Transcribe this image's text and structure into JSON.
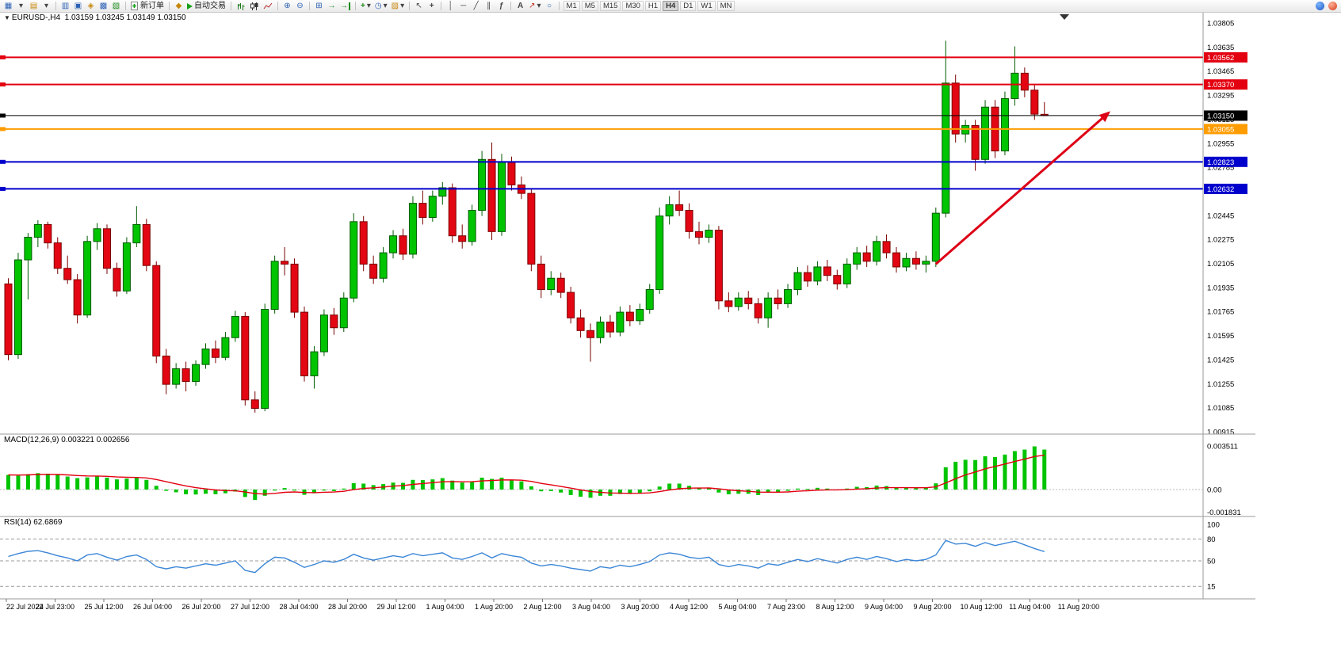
{
  "toolbar": {
    "new_order_label": "新订单",
    "auto_trading_label": "自动交易",
    "timeframes": [
      "M1",
      "M5",
      "M15",
      "M30",
      "H1",
      "H4",
      "D1",
      "W1",
      "MN"
    ],
    "active_timeframe": "H4",
    "icons": {
      "new_chart": "▦",
      "dropdown": "▾",
      "profiles": "▤",
      "market_watch": "▥",
      "data_window": "▣",
      "navigator": "◈",
      "terminal": "▩",
      "tester": "▧",
      "metaeditor": "◆",
      "zoom_in": "⊕",
      "zoom_out": "⊖",
      "tile": "⊞",
      "auto_scroll": "→",
      "chart_shift": "→",
      "indicators": "+",
      "periods": "◷",
      "templates": "▨",
      "cursor": "↖",
      "crosshair": "+",
      "vline": "│",
      "hline": "─",
      "trendline": "╱",
      "channel": "∥",
      "fibonacci": "ƒ",
      "text_tool": "A",
      "arrows_tool": "↗",
      "shapes_tool": "○"
    }
  },
  "chart_data": {
    "type": "candlestick+indicators",
    "main": {
      "symbol": "EURUSD-,H4",
      "ohlc_text": "1.03159 1.03245 1.03149 1.03150",
      "price_max": 1.03805,
      "price_step": 0.0017,
      "price_ticks": 18,
      "hlines": [
        {
          "price": 1.03562,
          "label": "1.03562",
          "color": "#e30010",
          "width": 2
        },
        {
          "price": 1.0337,
          "label": "1.03370",
          "color": "#e30010",
          "width": 2
        },
        {
          "price": 1.0315,
          "label": "1.03150",
          "color": "#000000",
          "width": 1
        },
        {
          "price": 1.03055,
          "label": "1.03055",
          "color": "#ff9c00",
          "width": 2
        },
        {
          "price": 1.02823,
          "label": "1.02823",
          "color": "#0000cc",
          "width": 2
        },
        {
          "price": 1.02632,
          "label": "1.02632",
          "color": "#0000cc",
          "width": 2
        }
      ],
      "arrow": {
        "from_bar": 94,
        "from_price": 1.021,
        "to_bar": 111.5,
        "to_price": 1.0317,
        "color": "#dd0016"
      }
    },
    "style": {
      "up": {
        "fill": "#00c400",
        "stroke": "#005a00"
      },
      "down": {
        "fill": "#e30613",
        "stroke": "#7a0000"
      }
    },
    "candles": [
      [
        1.0196,
        1.02,
        1.0142,
        1.0146
      ],
      [
        1.0146,
        1.0218,
        1.0143,
        1.0213
      ],
      [
        1.0213,
        1.0232,
        1.0185,
        1.0229
      ],
      [
        1.0229,
        1.0241,
        1.0222,
        1.0238
      ],
      [
        1.0238,
        1.024,
        1.0221,
        1.0225
      ],
      [
        1.0225,
        1.0229,
        1.0203,
        1.0207
      ],
      [
        1.0207,
        1.0216,
        1.0196,
        1.0199
      ],
      [
        1.0199,
        1.0203,
        1.0168,
        1.0174
      ],
      [
        1.0174,
        1.023,
        1.0172,
        1.0226
      ],
      [
        1.0226,
        1.0239,
        1.022,
        1.0235
      ],
      [
        1.0235,
        1.0238,
        1.0203,
        1.0207
      ],
      [
        1.0207,
        1.0211,
        1.0187,
        1.0191
      ],
      [
        1.0191,
        1.0229,
        1.0189,
        1.0225
      ],
      [
        1.0225,
        1.0251,
        1.0222,
        1.0238
      ],
      [
        1.0238,
        1.0242,
        1.0205,
        1.0209
      ],
      [
        1.0209,
        1.0212,
        1.014,
        1.0145
      ],
      [
        1.0145,
        1.015,
        1.0118,
        1.0125
      ],
      [
        1.0125,
        1.014,
        1.0122,
        1.0136
      ],
      [
        1.0136,
        1.0141,
        1.012,
        1.0127
      ],
      [
        1.0127,
        1.0142,
        1.0124,
        1.0139
      ],
      [
        1.0139,
        1.0154,
        1.0136,
        1.015
      ],
      [
        1.015,
        1.0156,
        1.014,
        1.0144
      ],
      [
        1.0144,
        1.0162,
        1.0142,
        1.0158
      ],
      [
        1.0158,
        1.0177,
        1.0155,
        1.0173
      ],
      [
        1.0173,
        1.0176,
        1.011,
        1.0114
      ],
      [
        1.0114,
        1.012,
        1.0105,
        1.0108
      ],
      [
        1.0108,
        1.0182,
        1.0106,
        1.0178
      ],
      [
        1.0178,
        1.0216,
        1.0175,
        1.0212
      ],
      [
        1.0212,
        1.0222,
        1.0202,
        1.021
      ],
      [
        1.021,
        1.0214,
        1.0172,
        1.0176
      ],
      [
        1.0176,
        1.018,
        1.0127,
        1.0131
      ],
      [
        1.0131,
        1.0152,
        1.0122,
        1.0148
      ],
      [
        1.0148,
        1.0178,
        1.0145,
        1.0174
      ],
      [
        1.0174,
        1.0179,
        1.016,
        1.0165
      ],
      [
        1.0165,
        1.019,
        1.0162,
        1.0186
      ],
      [
        1.0186,
        1.0246,
        1.0183,
        1.024
      ],
      [
        1.024,
        1.0244,
        1.0205,
        1.021
      ],
      [
        1.021,
        1.0216,
        1.0196,
        1.02
      ],
      [
        1.02,
        1.0222,
        1.0197,
        1.0218
      ],
      [
        1.0218,
        1.0234,
        1.0214,
        1.023
      ],
      [
        1.023,
        1.0235,
        1.0213,
        1.0217
      ],
      [
        1.0217,
        1.0258,
        1.0214,
        1.0253
      ],
      [
        1.0253,
        1.0262,
        1.0238,
        1.0243
      ],
      [
        1.0243,
        1.0262,
        1.024,
        1.0258
      ],
      [
        1.0258,
        1.0268,
        1.0252,
        1.0264
      ],
      [
        1.0264,
        1.0267,
        1.0225,
        1.023
      ],
      [
        1.023,
        1.0238,
        1.0221,
        1.0226
      ],
      [
        1.0226,
        1.0252,
        1.0223,
        1.0248
      ],
      [
        1.0248,
        1.029,
        1.0244,
        1.0284
      ],
      [
        1.0284,
        1.0296,
        1.0227,
        1.0233
      ],
      [
        1.0233,
        1.0288,
        1.023,
        1.0282
      ],
      [
        1.0282,
        1.0286,
        1.0262,
        1.0266
      ],
      [
        1.0266,
        1.0272,
        1.0256,
        1.026
      ],
      [
        1.026,
        1.0263,
        1.0205,
        1.021
      ],
      [
        1.021,
        1.0216,
        1.0186,
        1.0192
      ],
      [
        1.0192,
        1.0205,
        1.0188,
        1.02
      ],
      [
        1.02,
        1.0204,
        1.0186,
        1.019
      ],
      [
        1.019,
        1.0194,
        1.0168,
        1.0172
      ],
      [
        1.0172,
        1.0178,
        1.0158,
        1.0163
      ],
      [
        1.0163,
        1.0168,
        1.0141,
        1.0158
      ],
      [
        1.0158,
        1.0173,
        1.0154,
        1.0169
      ],
      [
        1.0169,
        1.0174,
        1.0158,
        1.0162
      ],
      [
        1.0162,
        1.018,
        1.0159,
        1.0176
      ],
      [
        1.0176,
        1.0181,
        1.0166,
        1.017
      ],
      [
        1.017,
        1.0182,
        1.0167,
        1.0178
      ],
      [
        1.0178,
        1.0196,
        1.0175,
        1.0192
      ],
      [
        1.0192,
        1.025,
        1.0189,
        1.0244
      ],
      [
        1.0244,
        1.0258,
        1.0238,
        1.0252
      ],
      [
        1.0252,
        1.0262,
        1.0244,
        1.0248
      ],
      [
        1.0248,
        1.0253,
        1.0228,
        1.0233
      ],
      [
        1.0233,
        1.024,
        1.0224,
        1.0229
      ],
      [
        1.0229,
        1.0238,
        1.0225,
        1.0234
      ],
      [
        1.0234,
        1.0237,
        1.0178,
        1.0184
      ],
      [
        1.0184,
        1.019,
        1.0176,
        1.018
      ],
      [
        1.018,
        1.019,
        1.0177,
        1.0186
      ],
      [
        1.0186,
        1.0191,
        1.0178,
        1.0182
      ],
      [
        1.0182,
        1.0186,
        1.0168,
        1.0172
      ],
      [
        1.0172,
        1.019,
        1.0165,
        1.0186
      ],
      [
        1.0186,
        1.0192,
        1.0178,
        1.0182
      ],
      [
        1.0182,
        1.0196,
        1.0179,
        1.0192
      ],
      [
        1.0192,
        1.0208,
        1.0188,
        1.0204
      ],
      [
        1.0204,
        1.0209,
        1.0194,
        1.0198
      ],
      [
        1.0198,
        1.0212,
        1.0195,
        1.0208
      ],
      [
        1.0208,
        1.0213,
        1.0198,
        1.0202
      ],
      [
        1.0202,
        1.0206,
        1.0192,
        1.0196
      ],
      [
        1.0196,
        1.0214,
        1.0193,
        1.021
      ],
      [
        1.021,
        1.0222,
        1.0206,
        1.0218
      ],
      [
        1.0218,
        1.0223,
        1.0208,
        1.0212
      ],
      [
        1.0212,
        1.023,
        1.0209,
        1.0226
      ],
      [
        1.0226,
        1.0231,
        1.0214,
        1.0218
      ],
      [
        1.0218,
        1.0222,
        1.0204,
        1.0208
      ],
      [
        1.0208,
        1.0218,
        1.0205,
        1.0214
      ],
      [
        1.0214,
        1.0219,
        1.0206,
        1.021
      ],
      [
        1.021,
        1.0216,
        1.0204,
        1.0212
      ],
      [
        1.0212,
        1.025,
        1.0208,
        1.0246
      ],
      [
        1.0246,
        1.0368,
        1.0243,
        1.0338
      ],
      [
        1.0338,
        1.0344,
        1.0296,
        1.0302
      ],
      [
        1.0302,
        1.0312,
        1.0296,
        1.0308
      ],
      [
        1.0308,
        1.0312,
        1.0276,
        1.0284
      ],
      [
        1.0284,
        1.0326,
        1.0281,
        1.0321
      ],
      [
        1.0321,
        1.0326,
        1.0285,
        1.029
      ],
      [
        1.029,
        1.0332,
        1.0287,
        1.0327
      ],
      [
        1.0327,
        1.0364,
        1.0322,
        1.0345
      ],
      [
        1.0345,
        1.0349,
        1.0328,
        1.0333
      ],
      [
        1.0333,
        1.0337,
        1.0312,
        1.0316
      ],
      [
        1.03159,
        1.03245,
        1.03149,
        1.0315
      ]
    ],
    "macd": {
      "label": "MACD(12,26,9) 0.003221 0.002656",
      "bar_color": "#00c400",
      "signal_color": "#e30010",
      "scale": 15665,
      "axis": [
        {
          "text": "0.003511",
          "value": 0.003511
        },
        {
          "text": "0.00",
          "value": 0
        },
        {
          "text": "-0.001831",
          "value": -0.001831
        }
      ],
      "values": [
        0.00118,
        0.00112,
        0.00124,
        0.00132,
        0.00128,
        0.00118,
        0.00105,
        0.00092,
        0.00098,
        0.00106,
        0.00096,
        0.00082,
        0.00088,
        0.00094,
        0.00078,
        0.0003,
        -0.0001,
        -0.00022,
        -0.00038,
        -0.0004,
        -0.00034,
        -0.00038,
        -0.0003,
        -0.00016,
        -0.0006,
        -0.00084,
        -0.0005,
        -8e-05,
        0.00012,
        -8e-05,
        -0.00042,
        -0.0003,
        -8e-05,
        -0.00012,
        8e-05,
        0.00052,
        0.00048,
        0.00036,
        0.00044,
        0.00056,
        0.00054,
        0.00078,
        0.00076,
        0.00082,
        0.00092,
        0.00072,
        0.00056,
        0.00064,
        0.00096,
        0.00086,
        0.00096,
        0.0008,
        0.00066,
        0.00026,
        -0.00014,
        -0.00012,
        -0.00024,
        -0.00044,
        -0.00058,
        -0.00066,
        -0.0005,
        -0.0005,
        -0.00036,
        -0.00036,
        -0.00028,
        -0.00014,
        0.00024,
        0.00048,
        0.00048,
        0.0003,
        0.00016,
        0.00016,
        -0.00024,
        -0.00038,
        -0.00034,
        -0.00034,
        -0.00044,
        -0.00024,
        -0.00022,
        -0.0001,
        8e-05,
        6e-05,
        0.00014,
        8e-05,
        -4e-05,
        8e-05,
        0.00022,
        0.0002,
        0.00032,
        0.00028,
        0.00016,
        0.00016,
        0.00012,
        0.00014,
        0.0005,
        0.0018,
        0.00224,
        0.0024,
        0.00238,
        0.00268,
        0.00262,
        0.00282,
        0.0031,
        0.00322,
        0.00348,
        0.003221
      ]
    },
    "rsi": {
      "label": "RSI(14) 62.6869",
      "line_color": "#3b86d6",
      "levels": [
        80,
        50,
        15
      ],
      "axis_labels": [
        100,
        80,
        50,
        15
      ],
      "values": [
        56,
        60,
        63,
        64,
        61,
        57,
        54,
        50,
        58,
        60,
        55,
        51,
        56,
        58,
        52,
        42,
        39,
        42,
        40,
        43,
        46,
        44,
        47,
        50,
        37,
        34,
        46,
        55,
        54,
        48,
        41,
        45,
        50,
        48,
        52,
        59,
        54,
        51,
        54,
        57,
        55,
        60,
        57,
        59,
        61,
        54,
        52,
        56,
        61,
        54,
        60,
        57,
        55,
        47,
        43,
        45,
        43,
        40,
        38,
        36,
        42,
        40,
        44,
        42,
        45,
        49,
        58,
        61,
        59,
        55,
        53,
        55,
        45,
        42,
        45,
        43,
        40,
        46,
        44,
        48,
        52,
        49,
        53,
        50,
        47,
        52,
        55,
        52,
        56,
        53,
        49,
        52,
        50,
        52,
        58,
        78,
        73,
        74,
        70,
        75,
        71,
        74,
        77,
        72,
        67,
        62.6869
      ]
    },
    "time_labels": [
      "22 Jul 2022",
      "24 Jul 23:00",
      "25 Jul 12:00",
      "26 Jul 04:00",
      "26 Jul 20:00",
      "27 Jul 12:00",
      "28 Jul 04:00",
      "28 Jul 20:00",
      "29 Jul 12:00",
      "1 Aug 04:00",
      "1 Aug 20:00",
      "2 Aug 12:00",
      "3 Aug 04:00",
      "3 Aug 20:00",
      "4 Aug 12:00",
      "5 Aug 04:00",
      "7 Aug 23:00",
      "8 Aug 12:00",
      "9 Aug 04:00",
      "9 Aug 20:00",
      "10 Aug 12:00",
      "11 Aug 04:00",
      "11 Aug 20:00"
    ]
  }
}
